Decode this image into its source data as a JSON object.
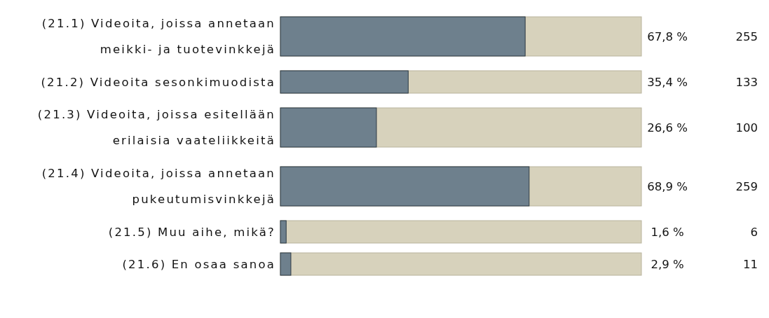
{
  "chart_data": {
    "type": "bar",
    "orientation": "horizontal",
    "categories": [
      "(21.1) Videoita, joissa annetaan meikki- ja tuotevinkkejä",
      "(21.2) Videoita sesonkimuodista",
      "(21.3) Videoita, joissa esitellään erilaisia vaateliikkeitä",
      "(21.4) Videoita, joissa annetaan pukeutumisvinkkejä",
      "(21.5) Muu aihe, mikä?",
      "(21.6) En osaa sanoa"
    ],
    "values": [
      67.8,
      35.4,
      26.6,
      68.9,
      1.6,
      2.9
    ],
    "value_labels": [
      "67,8 %",
      "35,4 %",
      "26,6 %",
      "68,9 %",
      "1,6 %",
      "2,9 %"
    ],
    "color": "#6e808d",
    "xlim": [
      0,
      100
    ],
    "annotations": [
      "255",
      "133",
      "100",
      "259",
      "6",
      "11"
    ]
  }
}
